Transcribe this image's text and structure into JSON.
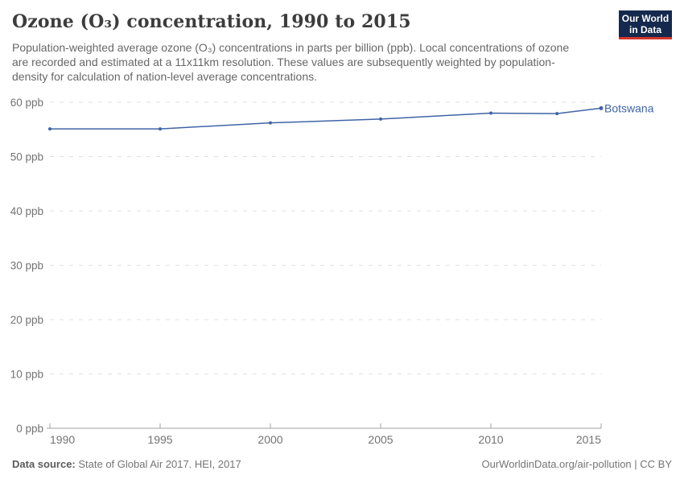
{
  "header": {
    "title": "Ozone (O₃) concentration, 1990 to 2015",
    "subtitle": "Population-weighted average ozone (O₃) concentrations in parts per billion (ppb). Local concentrations of ozone are recorded and estimated at a 11x11km resolution. These values are subsequently weighted by population-density for calculation of nation-level average concentrations.",
    "logo": {
      "line1": "Our World",
      "line2": "in Data",
      "bg_color": "#14294d",
      "accent_color": "#d7352a",
      "text_color": "#ffffff"
    }
  },
  "chart_data": {
    "type": "line",
    "title": "Ozone (O₃) concentration, 1990 to 2015",
    "unit": "ppb",
    "x": [
      1990,
      1995,
      2000,
      2005,
      2010,
      2013,
      2015
    ],
    "series": [
      {
        "name": "Botswana",
        "color": "#4064a6",
        "values": [
          55.1,
          55.1,
          56.2,
          56.9,
          58.0,
          57.9,
          58.9
        ]
      }
    ],
    "xlim": [
      1990,
      2015
    ],
    "ylim": [
      0,
      60
    ],
    "grid": "horizontal-dashed",
    "legend_position": "end-of-line",
    "xticks": [
      {
        "value": 1990,
        "label": "1990"
      },
      {
        "value": 1995,
        "label": "1995"
      },
      {
        "value": 2000,
        "label": "2000"
      },
      {
        "value": 2005,
        "label": "2005"
      },
      {
        "value": 2010,
        "label": "2010"
      },
      {
        "value": 2015,
        "label": "2015"
      }
    ],
    "yticks": [
      {
        "value": 0,
        "label": "0 ppb"
      },
      {
        "value": 10,
        "label": "10 ppb"
      },
      {
        "value": 20,
        "label": "20 ppb"
      },
      {
        "value": 30,
        "label": "30 ppb"
      },
      {
        "value": 40,
        "label": "40 ppb"
      },
      {
        "value": 50,
        "label": "50 ppb"
      },
      {
        "value": 60,
        "label": "60 ppb"
      }
    ]
  },
  "footer": {
    "source_label": "Data source:",
    "source_text": " State of Global Air 2017. HEI, 2017",
    "credit": "OurWorldinData.org/air-pollution | CC BY"
  }
}
